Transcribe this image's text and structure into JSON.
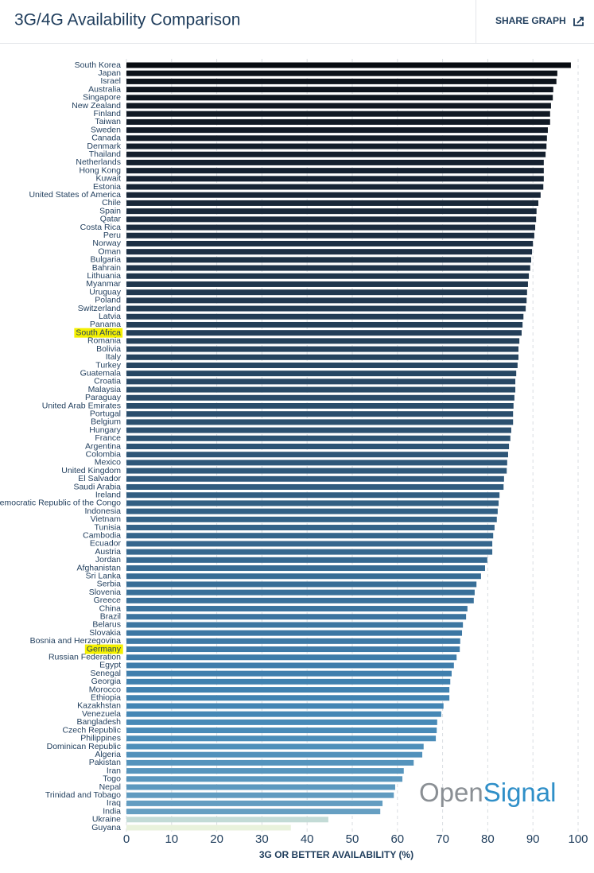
{
  "header": {
    "title": "3G/4G Availability Comparison",
    "share": "SHARE GRAPH"
  },
  "chart_data": {
    "type": "bar",
    "orientation": "horizontal",
    "xlabel": "3G OR BETTER AVAILABILITY (%)",
    "watermark": [
      "Open",
      "Signal"
    ],
    "categories": [
      "South Korea",
      "Japan",
      "Israel",
      "Australia",
      "Singapore",
      "New Zealand",
      "Finland",
      "Taiwan",
      "Sweden",
      "Canada",
      "Denmark",
      "Thailand",
      "Netherlands",
      "Hong Kong",
      "Kuwait",
      "Estonia",
      "United States of America",
      "Chile",
      "Spain",
      "Qatar",
      "Costa Rica",
      "Peru",
      "Norway",
      "Oman",
      "Bulgaria",
      "Bahrain",
      "Lithuania",
      "Myanmar",
      "Uruguay",
      "Poland",
      "Switzerland",
      "Latvia",
      "Panama",
      "South Africa",
      "Romania",
      "Bolivia",
      "Italy",
      "Turkey",
      "Guatemala",
      "Croatia",
      "Malaysia",
      "Paraguay",
      "United Arab Emirates",
      "Portugal",
      "Belgium",
      "Hungary",
      "France",
      "Argentina",
      "Colombia",
      "Mexico",
      "United Kingdom",
      "El Salvador",
      "Saudi Arabia",
      "Ireland",
      "Democratic Republic of the Congo",
      "Indonesia",
      "Vietnam",
      "Tunisia",
      "Cambodia",
      "Ecuador",
      "Austria",
      "Jordan",
      "Afghanistan",
      "Sri Lanka",
      "Serbia",
      "Slovenia",
      "Greece",
      "China",
      "Brazil",
      "Belarus",
      "Slovakia",
      "Bosnia and Herzegovina",
      "Germany",
      "Russian Federation",
      "Egypt",
      "Senegal",
      "Georgia",
      "Morocco",
      "Ethiopia",
      "Kazakhstan",
      "Venezuela",
      "Bangladesh",
      "Czech Republic",
      "Philippines",
      "Dominican Republic",
      "Algeria",
      "Pakistan",
      "Iran",
      "Togo",
      "Nepal",
      "Trinidad and Tobago",
      "Iraq",
      "India",
      "Ukraine",
      "Guyana"
    ],
    "values": [
      98.4,
      95.4,
      95.2,
      94.5,
      94.4,
      94.0,
      93.8,
      93.8,
      93.3,
      93.1,
      93.0,
      92.8,
      92.4,
      92.4,
      92.4,
      92.3,
      91.7,
      91.2,
      90.8,
      90.7,
      90.5,
      90.3,
      90.0,
      89.8,
      89.6,
      89.4,
      89.1,
      88.9,
      88.7,
      88.6,
      88.4,
      87.9,
      87.7,
      87.5,
      87.0,
      86.8,
      86.8,
      86.6,
      86.3,
      86.1,
      86.1,
      85.9,
      85.7,
      85.6,
      85.6,
      85.2,
      85.0,
      84.7,
      84.5,
      84.3,
      84.2,
      83.6,
      83.5,
      82.6,
      82.4,
      82.2,
      82.0,
      81.5,
      81.2,
      81.0,
      81.0,
      79.9,
      79.4,
      78.5,
      77.5,
      77.1,
      76.9,
      75.5,
      75.2,
      74.5,
      74.3,
      73.9,
      73.8,
      73.1,
      72.5,
      72.0,
      71.7,
      71.5,
      71.5,
      70.2,
      69.7,
      68.8,
      68.7,
      68.5,
      65.8,
      65.5,
      63.6,
      61.4,
      61.1,
      59.5,
      59.2,
      56.7,
      56.2,
      44.7,
      36.4
    ],
    "colors": [
      "#070b10",
      "#0c1219",
      "#0d141c",
      "#0e151e",
      "#0f1720",
      "#101822",
      "#111924",
      "#111a25",
      "#121b27",
      "#131d29",
      "#131e2b",
      "#141f2d",
      "#15212f",
      "#152231",
      "#162333",
      "#172535",
      "#182637",
      "#192839",
      "#19293b",
      "#1a2a3d",
      "#1b2c3f",
      "#1b2d41",
      "#1c2f43",
      "#1d3045",
      "#1d3247",
      "#1e3349",
      "#1f354b",
      "#1f364d",
      "#20384f",
      "#213951",
      "#213b53",
      "#223c55",
      "#233e57",
      "#243f59",
      "#24415b",
      "#25425d",
      "#26445f",
      "#264561",
      "#274763",
      "#284865",
      "#284a67",
      "#294b69",
      "#2a4d6b",
      "#2a4e6d",
      "#2b506f",
      "#2c5171",
      "#2c5373",
      "#2d5475",
      "#2e5677",
      "#2e5779",
      "#2f597b",
      "#305a7d",
      "#305c7f",
      "#315d81",
      "#325f83",
      "#326085",
      "#336287",
      "#346389",
      "#34658b",
      "#35668d",
      "#36688f",
      "#366991",
      "#376b93",
      "#386c95",
      "#386e97",
      "#397099",
      "#3a719b",
      "#3a739d",
      "#3b749f",
      "#3c76a1",
      "#3c77a3",
      "#3d79a5",
      "#3e7aa7",
      "#3e7ca9",
      "#3f7dab",
      "#407fad",
      "#4081af",
      "#4182b0",
      "#4284b2",
      "#4385b4",
      "#4587b5",
      "#4789b7",
      "#498bb8",
      "#4b8db9",
      "#4e8fba",
      "#5191bb",
      "#5493bc",
      "#5795bd",
      "#5a97be",
      "#5d99bf",
      "#609bc0",
      "#639dc1",
      "#669fc2",
      "#c3dbd6",
      "#e9f2dc"
    ],
    "highlight": [
      33,
      72
    ],
    "xlim": [
      0,
      100
    ],
    "xticks": [
      0,
      10,
      20,
      30,
      40,
      50,
      60,
      70,
      80,
      90,
      100
    ],
    "grid": true
  }
}
